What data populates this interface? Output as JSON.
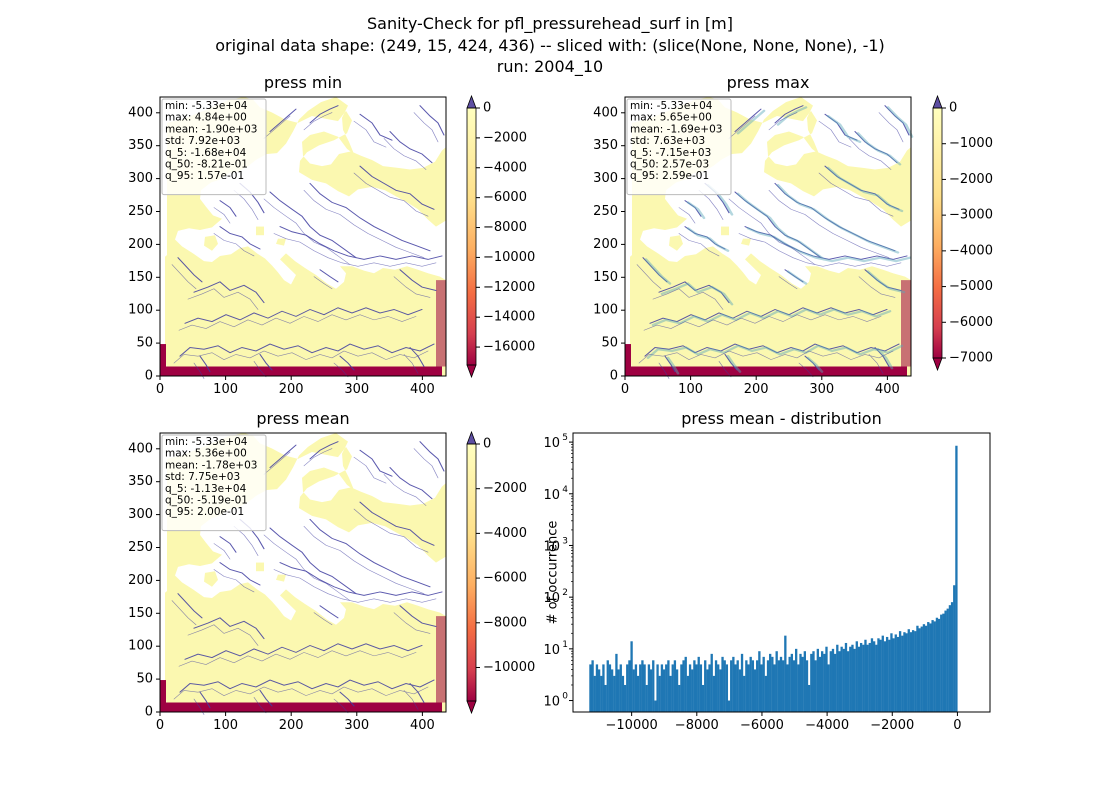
{
  "suptitle": [
    "Sanity-Check for pfl_pressurehead_surf in [m]",
    "original data shape: (249, 15, 424, 436) -- sliced with: (slice(None, None, None), -1)",
    "run: 2004_10"
  ],
  "colors": {
    "land": "#fbf8b0",
    "ocean": "#ffffff",
    "river": "#3f3da0",
    "river_light": "#5aa8ba",
    "low": "#9e0142",
    "bar": "#1f77b4"
  },
  "chart_data": [
    {
      "type": "heatmap",
      "title": "press min",
      "xlim": [
        0,
        436
      ],
      "ylim": [
        0,
        424
      ],
      "xticks": [
        "0",
        "100",
        "200",
        "300",
        "400"
      ],
      "yticks": [
        "0",
        "50",
        "100",
        "150",
        "200",
        "250",
        "300",
        "350",
        "400"
      ],
      "colorbar": {
        "colormap": "Spectral",
        "range": [
          -17200,
          0
        ],
        "ticks": [
          "0",
          "−2000",
          "−4000",
          "−6000",
          "−8000",
          "−10000",
          "−12000",
          "−14000",
          "−16000"
        ],
        "extend": "both"
      },
      "stats": [
        "min: -5.33e+04",
        "max: 4.84e+00",
        "mean: -1.90e+03",
        "std: 7.92e+03",
        "q_5: -1.68e+04",
        "q_50: -8.21e-01",
        "q_95: 1.57e-01"
      ]
    },
    {
      "type": "heatmap",
      "title": "press max",
      "xlim": [
        0,
        436
      ],
      "ylim": [
        0,
        424
      ],
      "xticks": [
        "0",
        "100",
        "200",
        "300",
        "400"
      ],
      "yticks": [
        "0",
        "50",
        "100",
        "150",
        "200",
        "250",
        "300",
        "350",
        "400"
      ],
      "colorbar": {
        "colormap": "Spectral",
        "range": [
          -7000,
          0
        ],
        "ticks": [
          "0",
          "−1000",
          "−2000",
          "−3000",
          "−4000",
          "−5000",
          "−6000",
          "−7000"
        ],
        "extend": "both"
      },
      "stats": [
        "min: -5.33e+04",
        "max: 5.65e+00",
        "mean: -1.69e+03",
        "std: 7.63e+03",
        "q_5: -7.15e+03",
        "q_50: 2.57e-03",
        "q_95: 2.59e-01"
      ]
    },
    {
      "type": "heatmap",
      "title": "press mean",
      "xlim": [
        0,
        436
      ],
      "ylim": [
        0,
        424
      ],
      "xticks": [
        "0",
        "100",
        "200",
        "300",
        "400"
      ],
      "yticks": [
        "0",
        "50",
        "100",
        "150",
        "200",
        "250",
        "300",
        "350",
        "400"
      ],
      "colorbar": {
        "colormap": "Spectral",
        "range": [
          -11500,
          0
        ],
        "ticks": [
          "0",
          "−2000",
          "−4000",
          "−6000",
          "−8000",
          "−10000"
        ],
        "extend": "both"
      },
      "stats": [
        "min: -5.33e+04",
        "max: 5.36e+00",
        "mean: -1.78e+03",
        "std: 7.75e+03",
        "q_5: -1.13e+04",
        "q_50: -5.19e-01",
        "q_95: 2.00e-01"
      ]
    },
    {
      "type": "bar",
      "title": "press mean - distribution",
      "ylabel": "# of occurrence",
      "yscale": "log",
      "xlim": [
        -11800,
        1000
      ],
      "ylim": [
        0.6,
        150000
      ],
      "xticks": [
        "−10000",
        "−8000",
        "−6000",
        "−4000",
        "−2000",
        "0"
      ],
      "yticks": [
        "10",
        "10",
        "10",
        "10",
        "10",
        "10"
      ],
      "ytick_exponents": [
        "0",
        "1",
        "2",
        "3",
        "4",
        "5"
      ],
      "bin_range": [
        -11300,
        0
      ],
      "counts": [
        5,
        6,
        3,
        5,
        4,
        3,
        5,
        2,
        6,
        5,
        4,
        3,
        8,
        4,
        5,
        3,
        2,
        5,
        6,
        14,
        4,
        5,
        3,
        5,
        6,
        5,
        2,
        5,
        4,
        6,
        1,
        5,
        3,
        5,
        4,
        5,
        6,
        3,
        5,
        6,
        4,
        2,
        5,
        6,
        7,
        3,
        5,
        4,
        6,
        5,
        7,
        5,
        2,
        6,
        4,
        5,
        8,
        3,
        6,
        5,
        4,
        7,
        6,
        5,
        1,
        6,
        7,
        5,
        6,
        4,
        8,
        3,
        6,
        5,
        7,
        6,
        4,
        6,
        9,
        5,
        7,
        3,
        6,
        8,
        7,
        5,
        9,
        6,
        7,
        6,
        18,
        5,
        7,
        8,
        6,
        10,
        5,
        8,
        7,
        9,
        6,
        2,
        8,
        9,
        6,
        10,
        7,
        9,
        8,
        11,
        5,
        9,
        10,
        8,
        12,
        9,
        11,
        10,
        13,
        9,
        11,
        12,
        10,
        14,
        11,
        13,
        12,
        15,
        12,
        13,
        16,
        14,
        12,
        16,
        15,
        18,
        14,
        17,
        15,
        20,
        16,
        19,
        17,
        22,
        18,
        21,
        20,
        24,
        21,
        23,
        22,
        28,
        25,
        27,
        30,
        28,
        33,
        31,
        36,
        34,
        40,
        38,
        46,
        48,
        55,
        60,
        70,
        80,
        170,
        85000
      ]
    }
  ]
}
